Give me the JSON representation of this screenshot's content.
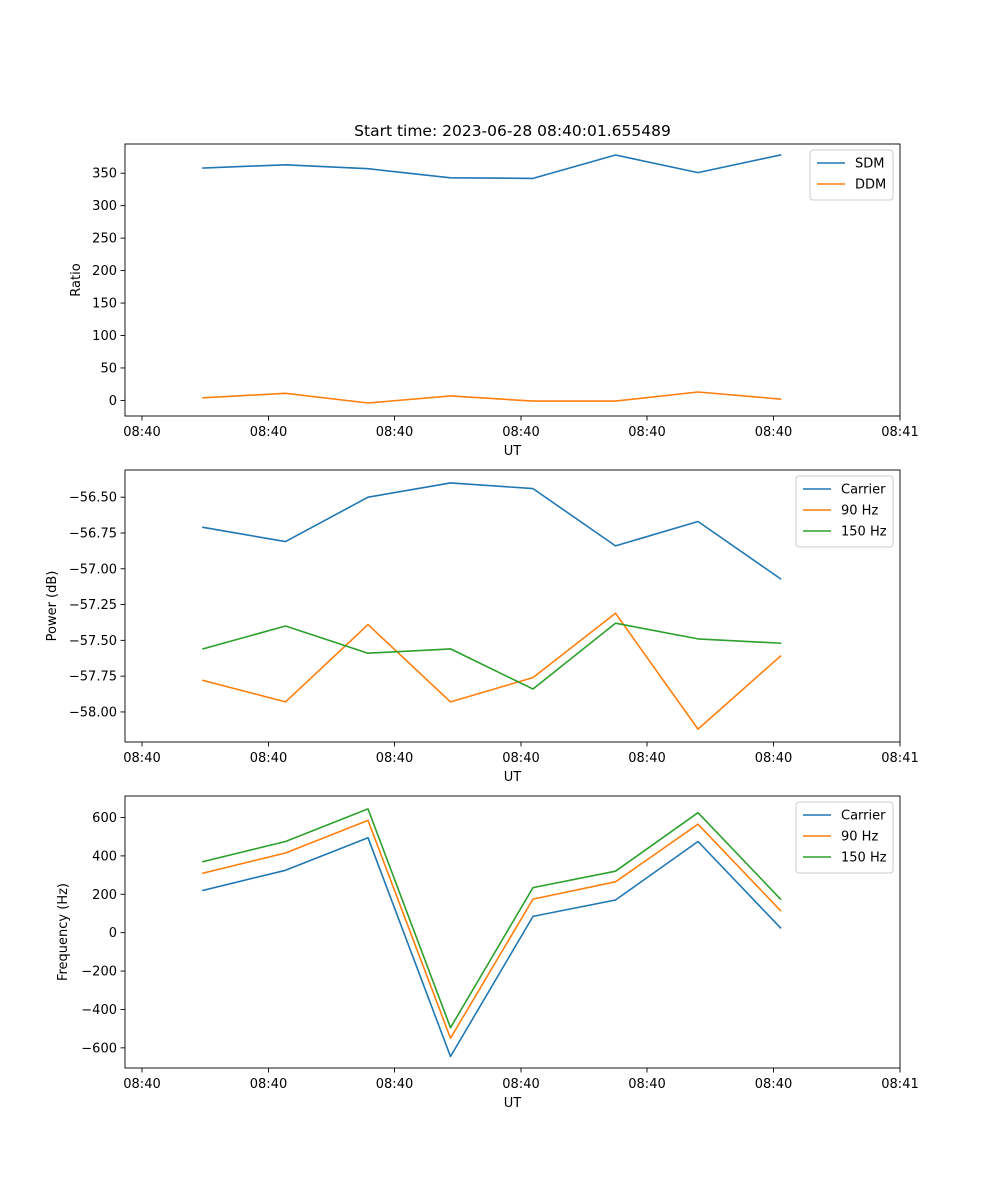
{
  "figure_title": "Start time: 2023-06-28 08:40:01.655489",
  "chart_data": [
    {
      "type": "line",
      "title": "Start time: 2023-06-28 08:40:01.655489",
      "xlabel": "UT",
      "ylabel": "Ratio",
      "x_tick_labels": [
        "08:40",
        "08:40",
        "08:40",
        "08:40",
        "08:40",
        "08:40",
        "08:40",
        "08:41"
      ],
      "y_ticks": [
        0,
        50,
        100,
        150,
        200,
        250,
        300,
        350
      ],
      "y_tick_labels": [
        "0",
        "50",
        "100",
        "150",
        "200",
        "250",
        "300",
        "350"
      ],
      "ylim": [
        -24,
        395
      ],
      "legend_position": "top-right",
      "series": [
        {
          "name": "SDM",
          "color": "#1f77b4",
          "values": [
            358,
            363,
            357,
            343,
            342,
            378,
            351,
            378
          ]
        },
        {
          "name": "DDM",
          "color": "#ff7f0e",
          "values": [
            4,
            11,
            -4,
            7,
            -1,
            -1,
            13,
            2
          ]
        }
      ]
    },
    {
      "type": "line",
      "title": "",
      "xlabel": "UT",
      "ylabel": "Power (dB)",
      "x_tick_labels": [
        "08:40",
        "08:40",
        "08:40",
        "08:40",
        "08:40",
        "08:40",
        "08:40",
        "08:41"
      ],
      "y_ticks": [
        -58.0,
        -57.75,
        -57.5,
        -57.25,
        -57.0,
        -56.75,
        -56.5
      ],
      "y_tick_labels": [
        "−58.00",
        "−57.75",
        "−57.50",
        "−57.25",
        "−57.00",
        "−56.75",
        "−56.50"
      ],
      "ylim": [
        -58.21,
        -56.31
      ],
      "legend_position": "top-right",
      "series": [
        {
          "name": "Carrier",
          "color": "#1f77b4",
          "values": [
            -56.71,
            -56.81,
            -56.5,
            -56.4,
            -56.44,
            -56.84,
            -56.67,
            -57.07
          ]
        },
        {
          "name": "90 Hz",
          "color": "#ff7f0e",
          "values": [
            -57.78,
            -57.93,
            -57.39,
            -57.93,
            -57.76,
            -57.31,
            -58.12,
            -57.61
          ]
        },
        {
          "name": "150 Hz",
          "color": "#2ca02c",
          "values": [
            -57.56,
            -57.4,
            -57.59,
            -57.56,
            -57.84,
            -57.38,
            -57.49,
            -57.52
          ]
        }
      ]
    },
    {
      "type": "line",
      "title": "",
      "xlabel": "UT",
      "ylabel": "Frequency (Hz)",
      "x_tick_labels": [
        "08:40",
        "08:40",
        "08:40",
        "08:40",
        "08:40",
        "08:40",
        "08:40",
        "08:41"
      ],
      "y_ticks": [
        -600,
        -400,
        -200,
        0,
        200,
        400,
        600
      ],
      "y_tick_labels": [
        "−600",
        "−400",
        "−200",
        "0",
        "200",
        "400",
        "600"
      ],
      "ylim": [
        -705,
        712
      ],
      "legend_position": "top-right",
      "series": [
        {
          "name": "Carrier",
          "color": "#1f77b4",
          "values": [
            220,
            325,
            495,
            -645,
            85,
            170,
            475,
            25
          ]
        },
        {
          "name": "90 Hz",
          "color": "#ff7f0e",
          "values": [
            310,
            415,
            585,
            -550,
            175,
            265,
            565,
            115
          ]
        },
        {
          "name": "150 Hz",
          "color": "#2ca02c",
          "values": [
            370,
            475,
            645,
            -495,
            235,
            320,
            625,
            175
          ]
        }
      ]
    }
  ]
}
